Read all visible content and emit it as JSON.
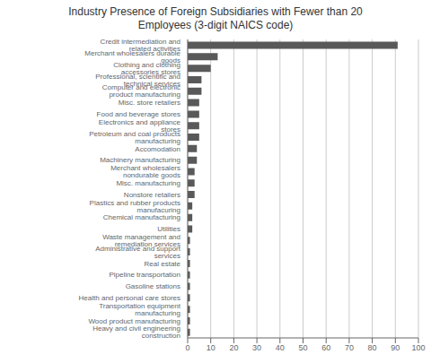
{
  "chart_data": {
    "type": "bar",
    "orientation": "horizontal",
    "title": "Industry Presence of Foreign Subsidiaries with Fewer than 20\nEmployees (3-digit NAICS code)",
    "categories": [
      "Heavy and civil engineering construction",
      "Wood product manufacturing",
      "Transportation equipment manufacturing",
      "Health and personal care stores",
      "Gasoline stations",
      "Pipeline transportation",
      "Real estate",
      "Administrative and support services",
      "Waste management and remediation services",
      "Utilities",
      "Chemical manufacturing",
      "Plastics and rubber products manufacuring",
      "Nonstore retailers",
      "Misc. manufacturing",
      "Merchant wholesalers nondurable goods",
      "Machinery manufacturing",
      "Accomodation",
      "Petroleum and coal products manufacturing",
      "Electronics and appliance stores",
      "Food and beverage stores",
      "Misc. store retailers",
      "Computer and electronic product manufacturing",
      "Professional, scientific and technical services",
      "Clothing and clothing accessories stores",
      "Merchant wholesalers durable goods",
      "Credit intermediation and related activities"
    ],
    "values": [
      1,
      1,
      1,
      1,
      1,
      1,
      1,
      1,
      1,
      2,
      2,
      2,
      3,
      3,
      3,
      4,
      4,
      5,
      5,
      5,
      5,
      6,
      6,
      10,
      13,
      91
    ],
    "color": "#595959",
    "xlim": [
      0,
      100
    ],
    "xticks": [
      0,
      10,
      20,
      30,
      40,
      50,
      60,
      70,
      80,
      90,
      100
    ],
    "grid": true
  }
}
